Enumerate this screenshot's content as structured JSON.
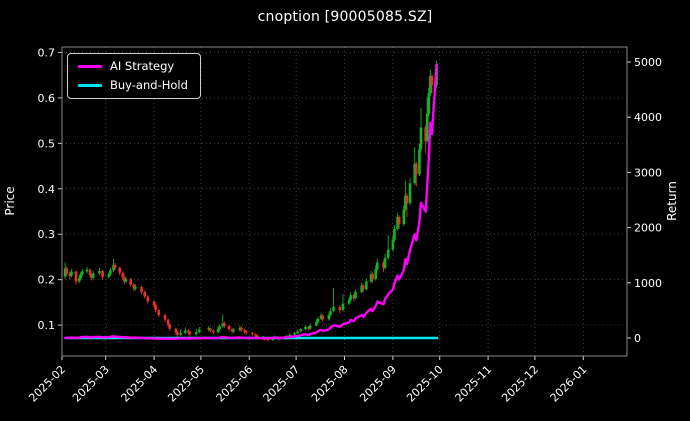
{
  "chart_data": {
    "type": "candlestick+line",
    "title": "cnoption [90005085.SZ]",
    "ylabel_left": "Price",
    "ylabel_right": "Return",
    "grid": true,
    "legend_position": "upper-left",
    "x_tick_labels": [
      "2025-02",
      "2025-03",
      "2025-04",
      "2025-05",
      "2025-06",
      "2025-07",
      "2025-08",
      "2025-09",
      "2025-10",
      "2025-11",
      "2025-12",
      "2026-01"
    ],
    "x_range": [
      "2025-02-01",
      "2026-01-29"
    ],
    "price_ticks": [
      0.1,
      0.2,
      0.3,
      0.4,
      0.5,
      0.6,
      0.7
    ],
    "price_range": [
      0.032,
      0.712
    ],
    "return_ticks": [
      0,
      1000,
      2000,
      3000,
      4000,
      5000
    ],
    "return_range": [
      -326,
      5272
    ],
    "colors": {
      "background": "#000000",
      "text": "#ffffff",
      "grid": "#3f3f3f",
      "spine": "#888888",
      "tick": "#cfcfcf",
      "up": "#12b424",
      "down": "#e73323",
      "ai_strategy": "#ff00ff",
      "buy_and_hold": "#00e5ee"
    },
    "legend": [
      {
        "name": "AI Strategy",
        "color_key": "ai_strategy"
      },
      {
        "name": "Buy-and-Hold",
        "color_key": "buy_and_hold"
      }
    ],
    "candles": [
      [
        "2025-02-03",
        0.207,
        0.238,
        0.201,
        0.225
      ],
      [
        "2025-02-04",
        0.225,
        0.229,
        0.208,
        0.213
      ],
      [
        "2025-02-06",
        0.213,
        0.217,
        0.2,
        0.208
      ],
      [
        "2025-02-07",
        0.208,
        0.224,
        0.205,
        0.218
      ],
      [
        "2025-02-10",
        0.218,
        0.22,
        0.19,
        0.196
      ],
      [
        "2025-02-12",
        0.196,
        0.209,
        0.192,
        0.203
      ],
      [
        "2025-02-13",
        0.203,
        0.217,
        0.199,
        0.212
      ],
      [
        "2025-02-14",
        0.212,
        0.223,
        0.207,
        0.218
      ],
      [
        "2025-02-17",
        0.218,
        0.228,
        0.214,
        0.222
      ],
      [
        "2025-02-19",
        0.222,
        0.225,
        0.205,
        0.21
      ],
      [
        "2025-02-20",
        0.21,
        0.214,
        0.198,
        0.204
      ],
      [
        "2025-02-21",
        0.204,
        0.219,
        0.2,
        0.214
      ],
      [
        "2025-02-25",
        0.214,
        0.226,
        0.21,
        0.219
      ],
      [
        "2025-02-27",
        0.219,
        0.222,
        0.201,
        0.206
      ],
      [
        "2025-03-03",
        0.206,
        0.216,
        0.202,
        0.212
      ],
      [
        "2025-03-04",
        0.212,
        0.226,
        0.208,
        0.221
      ],
      [
        "2025-03-06",
        0.221,
        0.246,
        0.217,
        0.232
      ],
      [
        "2025-03-07",
        0.232,
        0.237,
        0.22,
        0.226
      ],
      [
        "2025-03-10",
        0.226,
        0.229,
        0.21,
        0.215
      ],
      [
        "2025-03-12",
        0.215,
        0.218,
        0.199,
        0.204
      ],
      [
        "2025-03-13",
        0.204,
        0.208,
        0.191,
        0.196
      ],
      [
        "2025-03-14",
        0.196,
        0.207,
        0.192,
        0.201
      ],
      [
        "2025-03-17",
        0.201,
        0.204,
        0.184,
        0.189
      ],
      [
        "2025-03-19",
        0.189,
        0.192,
        0.175,
        0.18
      ],
      [
        "2025-03-20",
        0.18,
        0.19,
        0.176,
        0.184
      ],
      [
        "2025-03-24",
        0.184,
        0.187,
        0.168,
        0.173
      ],
      [
        "2025-03-26",
        0.173,
        0.176,
        0.158,
        0.163
      ],
      [
        "2025-03-28",
        0.163,
        0.166,
        0.147,
        0.152
      ],
      [
        "2025-04-01",
        0.152,
        0.154,
        0.139,
        0.144
      ],
      [
        "2025-04-02",
        0.144,
        0.147,
        0.128,
        0.133
      ],
      [
        "2025-04-04",
        0.133,
        0.136,
        0.117,
        0.122
      ],
      [
        "2025-04-08",
        0.122,
        0.125,
        0.107,
        0.112
      ],
      [
        "2025-04-10",
        0.112,
        0.114,
        0.096,
        0.101
      ],
      [
        "2025-04-11",
        0.101,
        0.104,
        0.087,
        0.092
      ],
      [
        "2025-04-15",
        0.092,
        0.094,
        0.078,
        0.084
      ],
      [
        "2025-04-16",
        0.084,
        0.087,
        0.072,
        0.079
      ],
      [
        "2025-04-18",
        0.079,
        0.09,
        0.076,
        0.083
      ],
      [
        "2025-04-21",
        0.083,
        0.095,
        0.08,
        0.088
      ],
      [
        "2025-04-23",
        0.088,
        0.091,
        0.079,
        0.084
      ],
      [
        "2025-04-24",
        0.084,
        0.087,
        0.075,
        0.08
      ],
      [
        "2025-04-28",
        0.08,
        0.092,
        0.077,
        0.085
      ],
      [
        "2025-04-30",
        0.085,
        0.096,
        0.082,
        0.09
      ],
      [
        "2025-05-06",
        0.09,
        0.098,
        0.086,
        0.093
      ],
      [
        "2025-05-07",
        0.093,
        0.095,
        0.084,
        0.088
      ],
      [
        "2025-05-09",
        0.088,
        0.09,
        0.08,
        0.085
      ],
      [
        "2025-05-12",
        0.085,
        0.096,
        0.082,
        0.091
      ],
      [
        "2025-05-13",
        0.091,
        0.102,
        0.088,
        0.097
      ],
      [
        "2025-05-15",
        0.097,
        0.124,
        0.094,
        0.104
      ],
      [
        "2025-05-16",
        0.104,
        0.108,
        0.093,
        0.098
      ],
      [
        "2025-05-19",
        0.098,
        0.101,
        0.086,
        0.091
      ],
      [
        "2025-05-21",
        0.091,
        0.093,
        0.081,
        0.086
      ],
      [
        "2025-05-22",
        0.086,
        0.094,
        0.083,
        0.089
      ],
      [
        "2025-05-26",
        0.089,
        0.099,
        0.086,
        0.094
      ],
      [
        "2025-05-27",
        0.094,
        0.097,
        0.085,
        0.09
      ],
      [
        "2025-05-29",
        0.09,
        0.092,
        0.081,
        0.086
      ],
      [
        "2025-05-30",
        0.086,
        0.088,
        0.078,
        0.083
      ],
      [
        "2025-06-03",
        0.083,
        0.085,
        0.076,
        0.08
      ],
      [
        "2025-06-05",
        0.08,
        0.082,
        0.073,
        0.077
      ],
      [
        "2025-06-06",
        0.077,
        0.079,
        0.07,
        0.074
      ],
      [
        "2025-06-10",
        0.074,
        0.076,
        0.067,
        0.071
      ],
      [
        "2025-06-11",
        0.071,
        0.073,
        0.066,
        0.069
      ],
      [
        "2025-06-13",
        0.069,
        0.071,
        0.064,
        0.067
      ],
      [
        "2025-06-16",
        0.067,
        0.073,
        0.065,
        0.07
      ],
      [
        "2025-06-17",
        0.07,
        0.077,
        0.068,
        0.074
      ],
      [
        "2025-06-19",
        0.074,
        0.076,
        0.068,
        0.071
      ],
      [
        "2025-06-20",
        0.071,
        0.073,
        0.066,
        0.069
      ],
      [
        "2025-06-24",
        0.069,
        0.076,
        0.067,
        0.073
      ],
      [
        "2025-06-25",
        0.073,
        0.079,
        0.071,
        0.076
      ],
      [
        "2025-06-27",
        0.076,
        0.082,
        0.074,
        0.079
      ],
      [
        "2025-06-30",
        0.079,
        0.085,
        0.077,
        0.082
      ],
      [
        "2025-07-02",
        0.082,
        0.089,
        0.08,
        0.086
      ],
      [
        "2025-07-04",
        0.086,
        0.094,
        0.084,
        0.091
      ],
      [
        "2025-07-07",
        0.091,
        0.1,
        0.089,
        0.096
      ],
      [
        "2025-07-09",
        0.096,
        0.098,
        0.088,
        0.092
      ],
      [
        "2025-07-10",
        0.092,
        0.103,
        0.09,
        0.099
      ],
      [
        "2025-07-14",
        0.099,
        0.112,
        0.097,
        0.107
      ],
      [
        "2025-07-15",
        0.107,
        0.119,
        0.104,
        0.114
      ],
      [
        "2025-07-17",
        0.114,
        0.127,
        0.111,
        0.121
      ],
      [
        "2025-07-18",
        0.121,
        0.124,
        0.108,
        0.113
      ],
      [
        "2025-07-22",
        0.113,
        0.128,
        0.11,
        0.122
      ],
      [
        "2025-07-23",
        0.122,
        0.138,
        0.119,
        0.131
      ],
      [
        "2025-07-25",
        0.131,
        0.182,
        0.128,
        0.14
      ],
      [
        "2025-07-29",
        0.14,
        0.144,
        0.126,
        0.133
      ],
      [
        "2025-07-31",
        0.133,
        0.168,
        0.13,
        0.147
      ],
      [
        "2025-08-04",
        0.147,
        0.161,
        0.144,
        0.156
      ],
      [
        "2025-08-05",
        0.156,
        0.172,
        0.153,
        0.166
      ],
      [
        "2025-08-07",
        0.166,
        0.169,
        0.152,
        0.159
      ],
      [
        "2025-08-08",
        0.159,
        0.179,
        0.156,
        0.173
      ],
      [
        "2025-08-12",
        0.173,
        0.193,
        0.17,
        0.187
      ],
      [
        "2025-08-13",
        0.187,
        0.191,
        0.172,
        0.179
      ],
      [
        "2025-08-15",
        0.179,
        0.203,
        0.176,
        0.196
      ],
      [
        "2025-08-18",
        0.196,
        0.219,
        0.192,
        0.212
      ],
      [
        "2025-08-19",
        0.212,
        0.216,
        0.193,
        0.201
      ],
      [
        "2025-08-21",
        0.201,
        0.231,
        0.198,
        0.223
      ],
      [
        "2025-08-22",
        0.223,
        0.246,
        0.219,
        0.238
      ],
      [
        "2025-08-26",
        0.238,
        0.242,
        0.217,
        0.226
      ],
      [
        "2025-08-27",
        0.226,
        0.257,
        0.222,
        0.248
      ],
      [
        "2025-08-29",
        0.248,
        0.298,
        0.244,
        0.266
      ],
      [
        "2025-09-01",
        0.266,
        0.296,
        0.262,
        0.288
      ],
      [
        "2025-09-02",
        0.288,
        0.32,
        0.284,
        0.312
      ],
      [
        "2025-09-04",
        0.312,
        0.347,
        0.308,
        0.338
      ],
      [
        "2025-09-05",
        0.338,
        0.342,
        0.312,
        0.322
      ],
      [
        "2025-09-08",
        0.322,
        0.363,
        0.318,
        0.354
      ],
      [
        "2025-09-09",
        0.354,
        0.418,
        0.35,
        0.385
      ],
      [
        "2025-09-10",
        0.385,
        0.39,
        0.338,
        0.368
      ],
      [
        "2025-09-12",
        0.368,
        0.423,
        0.364,
        0.412
      ],
      [
        "2025-09-15",
        0.412,
        0.492,
        0.408,
        0.455
      ],
      [
        "2025-09-16",
        0.455,
        0.46,
        0.405,
        0.432
      ],
      [
        "2025-09-18",
        0.432,
        0.499,
        0.428,
        0.487
      ],
      [
        "2025-09-19",
        0.487,
        0.578,
        0.482,
        0.535
      ],
      [
        "2025-09-22",
        0.535,
        0.54,
        0.478,
        0.505
      ],
      [
        "2025-09-23",
        0.505,
        0.6,
        0.5,
        0.565
      ],
      [
        "2025-09-24",
        0.565,
        0.622,
        0.56,
        0.61
      ],
      [
        "2025-09-25",
        0.61,
        0.662,
        0.604,
        0.648
      ],
      [
        "2025-09-26",
        0.648,
        0.653,
        0.61,
        0.628
      ],
      [
        "2025-09-29",
        0.628,
        0.682,
        0.622,
        0.675
      ]
    ],
    "ai_strategy": [
      0,
      6,
      3,
      10,
      2,
      7,
      13,
      18,
      22,
      15,
      11,
      17,
      21,
      13,
      16,
      22,
      30,
      26,
      20,
      14,
      10,
      13,
      8,
      4,
      7,
      2,
      -2,
      -6,
      -8,
      -10,
      -12,
      -10,
      -12,
      -14,
      -12,
      -10,
      -8,
      -5,
      -7,
      -9,
      -6,
      -3,
      0,
      -2,
      -4,
      2,
      8,
      18,
      12,
      6,
      1,
      4,
      10,
      6,
      2,
      -1,
      3,
      1,
      -1,
      -3,
      -4,
      -6,
      0,
      8,
      4,
      1,
      9,
      15,
      21,
      28,
      38,
      52,
      68,
      55,
      75,
      100,
      125,
      150,
      128,
      155,
      190,
      230,
      205,
      250,
      285,
      330,
      305,
      355,
      415,
      385,
      455,
      530,
      490,
      580,
      660,
      610,
      710,
      790,
      880,
      990,
      1130,
      1060,
      1230,
      1430,
      1340,
      1600,
      1880,
      1770,
      2100,
      2450,
      2290,
      2750,
      3250,
      3900,
      3700,
      4950
    ],
    "buy_and_hold": {
      "constant": 0,
      "start": "2025-02-03",
      "end": "2025-09-30"
    }
  }
}
